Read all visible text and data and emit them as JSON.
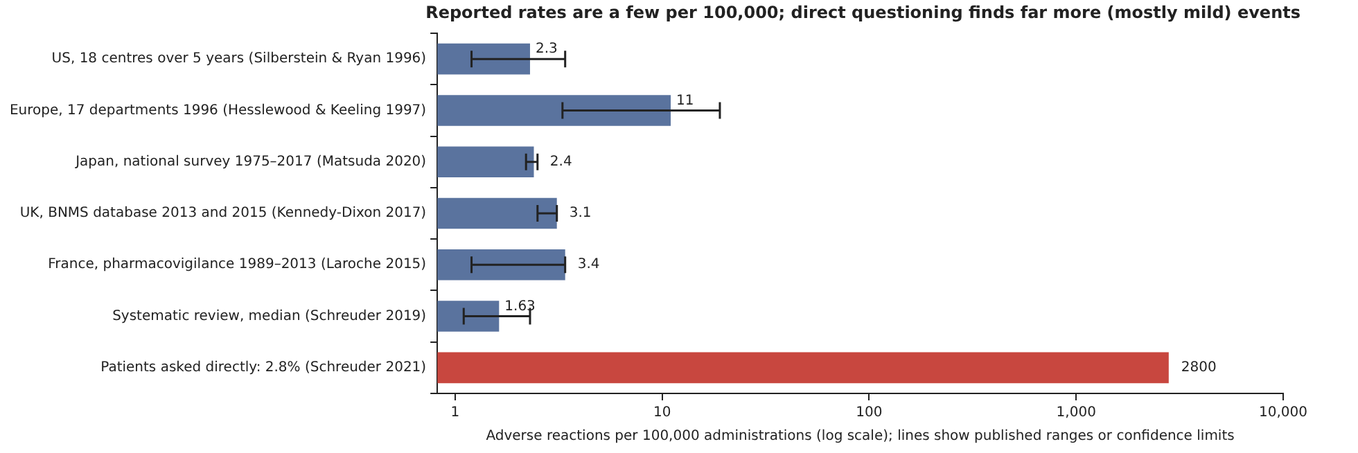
{
  "chart_data": {
    "type": "bar",
    "orientation": "horizontal",
    "title": "Reported rates are a few per 100,000; direct questioning finds far more (mostly mild) events",
    "xlabel": "Adverse reactions per 100,000 administrations (log scale); lines show published ranges or confidence limits",
    "categories": [
      "US, 18 centres over 5 years (Silberstein & Ryan 1996)",
      "Europe, 17 departments 1996 (Hesslewood & Keeling 1997)",
      "Japan, national survey 1975–2017 (Matsuda 2020)",
      "UK, BNMS database 2013 and 2015 (Kennedy-Dixon 2017)",
      "France, pharmacovigilance 1989–2013 (Laroche 2015)",
      "Systematic review, median (Schreuder 2019)",
      "Patients asked directly: 2.8% (Schreuder 2021)"
    ],
    "values": [
      2.3,
      11,
      2.4,
      3.1,
      3.4,
      1.63,
      2800
    ],
    "errors": [
      [
        1.2,
        3.4
      ],
      [
        3.3,
        19
      ],
      [
        2.2,
        2.5
      ],
      [
        2.5,
        3.1
      ],
      [
        1.2,
        3.4
      ],
      [
        1.1,
        2.3
      ],
      null
    ],
    "colors": [
      "#5a739e",
      "#5a739e",
      "#5a739e",
      "#5a739e",
      "#5a739e",
      "#5a739e",
      "#c8473f"
    ],
    "log": "x",
    "xlim": [
      0.82,
      10000
    ],
    "xticks": [
      1,
      10,
      {
        "value": 100,
        "label": "100"
      },
      {
        "value": 1000,
        "label": "1,000"
      },
      {
        "value": 10000,
        "label": "10,000"
      }
    ],
    "data_labels": true,
    "grid": false,
    "legend": false
  }
}
